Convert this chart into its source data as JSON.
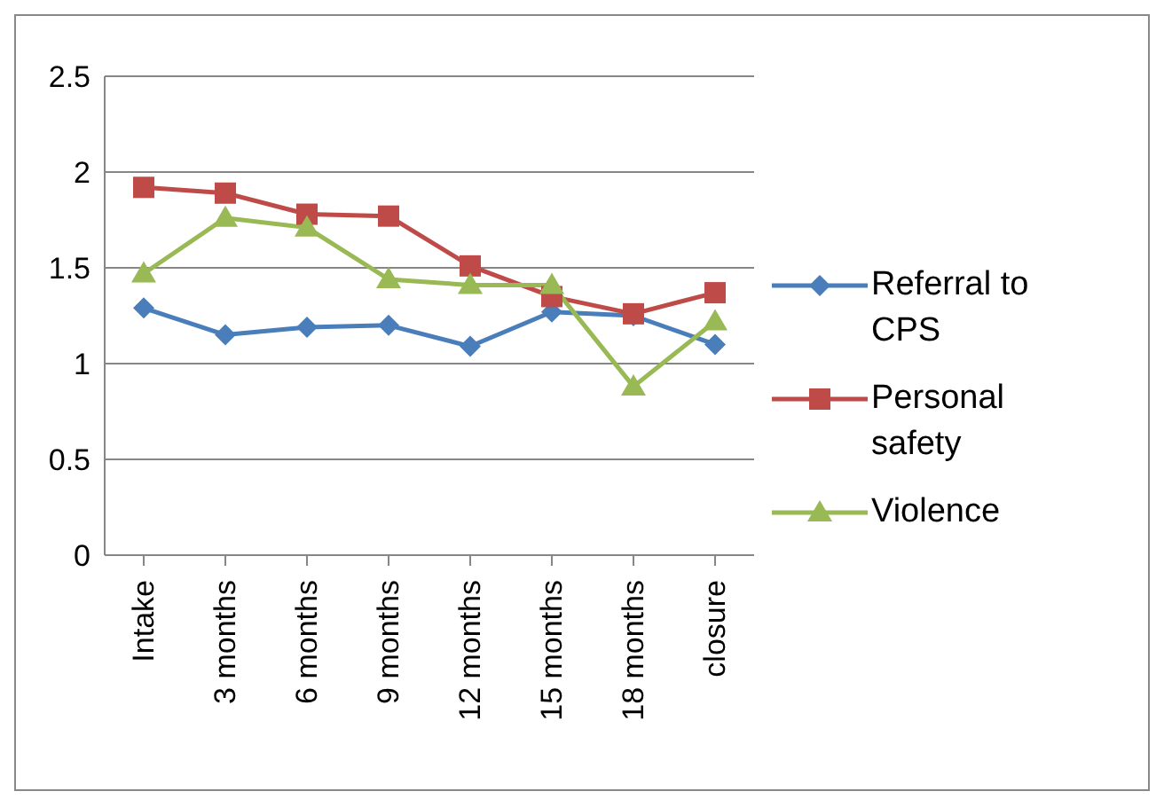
{
  "chart_data": {
    "type": "line",
    "categories": [
      "Intake",
      "3 months",
      "6 months",
      "9 months",
      "12 months",
      "15 months",
      "18 months",
      "closure"
    ],
    "series": [
      {
        "name": "Referral to CPS",
        "color": "#4a7ebb",
        "marker": "diamond",
        "values": [
          1.29,
          1.15,
          1.19,
          1.2,
          1.09,
          1.27,
          1.25,
          1.1
        ]
      },
      {
        "name": "Personal safety",
        "color": "#be4b48",
        "marker": "square",
        "values": [
          1.92,
          1.89,
          1.78,
          1.77,
          1.51,
          1.35,
          1.26,
          1.37
        ]
      },
      {
        "name": "Violence",
        "color": "#98b954",
        "marker": "triangle",
        "values": [
          1.47,
          1.76,
          1.71,
          1.44,
          1.41,
          1.41,
          0.88,
          1.22
        ]
      }
    ],
    "ylim": [
      0,
      2.5
    ],
    "yticks": [
      0,
      0.5,
      1,
      1.5,
      2,
      2.5
    ],
    "grid": "y",
    "legend": "right"
  }
}
